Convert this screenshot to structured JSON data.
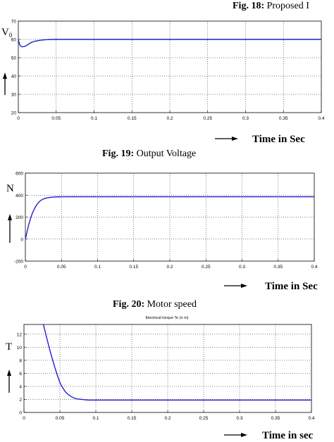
{
  "top_caption": {
    "bold": "Fig. 18:",
    "text": " Proposed I"
  },
  "chart_data": [
    {
      "type": "line",
      "ylabel_main": "V",
      "ylabel_sub": "0",
      "xlabel": "Time in Sec",
      "xlim": [
        0,
        0.4
      ],
      "ylim": [
        20,
        70
      ],
      "xticks": [
        "0",
        "0.05",
        "0.1",
        "0.15",
        "0.2",
        "0.25",
        "0.3",
        "0.35",
        "0.4"
      ],
      "yticks": [
        "20",
        "30",
        "40",
        "50",
        "60",
        "70"
      ],
      "series": [
        {
          "x": [
            0,
            0.002,
            0.005,
            0.01,
            0.015,
            0.02,
            0.03,
            0.04,
            0.05,
            0.1,
            0.2,
            0.3,
            0.4
          ],
          "y": [
            60,
            57,
            56,
            56.5,
            57.8,
            58.8,
            59.6,
            59.9,
            60,
            60,
            60,
            60,
            60
          ]
        }
      ],
      "grid": true,
      "caption_bold": "Fig. 19:",
      "caption_text": " Output Voltage"
    },
    {
      "type": "line",
      "ylabel_main": "N",
      "xlabel": "Time in Sec",
      "xlim": [
        0,
        0.4
      ],
      "ylim": [
        -200,
        600
      ],
      "xticks": [
        "0",
        "0.05",
        "0.1",
        "0.15",
        "0.2",
        "0.25",
        "0.3",
        "0.35",
        "0.4"
      ],
      "yticks": [
        "-200",
        "0",
        "200",
        "400",
        "600"
      ],
      "series": [
        {
          "x": [
            0,
            0.005,
            0.01,
            0.015,
            0.02,
            0.025,
            0.03,
            0.04,
            0.05,
            0.06,
            0.1,
            0.2,
            0.3,
            0.4
          ],
          "y": [
            0,
            140,
            240,
            305,
            345,
            365,
            375,
            383,
            385,
            385,
            385,
            385,
            385,
            385
          ]
        }
      ],
      "grid": true,
      "caption_bold": "Fig. 20:",
      "caption_text": " Motor speed"
    },
    {
      "type": "line",
      "title": "Electrical torque Te (n m)",
      "ylabel_main": "T",
      "xlabel": "Time in sec",
      "xlim": [
        0,
        0.4
      ],
      "ylim": [
        0,
        13.5
      ],
      "xticks": [
        "0",
        "0.05",
        "0.1",
        "0.15",
        "0.2",
        "0.25",
        "0.3",
        "0.35",
        "0.4"
      ],
      "yticks": [
        "0",
        "2",
        "4",
        "6",
        "8",
        "10",
        "12"
      ],
      "series": [
        {
          "x": [
            0.027,
            0.035,
            0.04,
            0.045,
            0.05,
            0.055,
            0.06,
            0.07,
            0.08,
            0.09,
            0.1,
            0.2,
            0.3,
            0.4
          ],
          "y": [
            13.5,
            10,
            8,
            6.2,
            4.6,
            3.6,
            2.9,
            2.2,
            2.0,
            1.9,
            1.9,
            1.9,
            1.9,
            1.9
          ]
        }
      ],
      "grid": true
    }
  ]
}
